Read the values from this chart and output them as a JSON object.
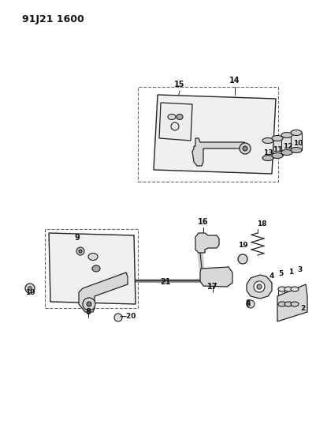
{
  "title": "91J21 1600",
  "bg": "#ffffff",
  "fw": 4.01,
  "fh": 5.33,
  "dpi": 100
}
